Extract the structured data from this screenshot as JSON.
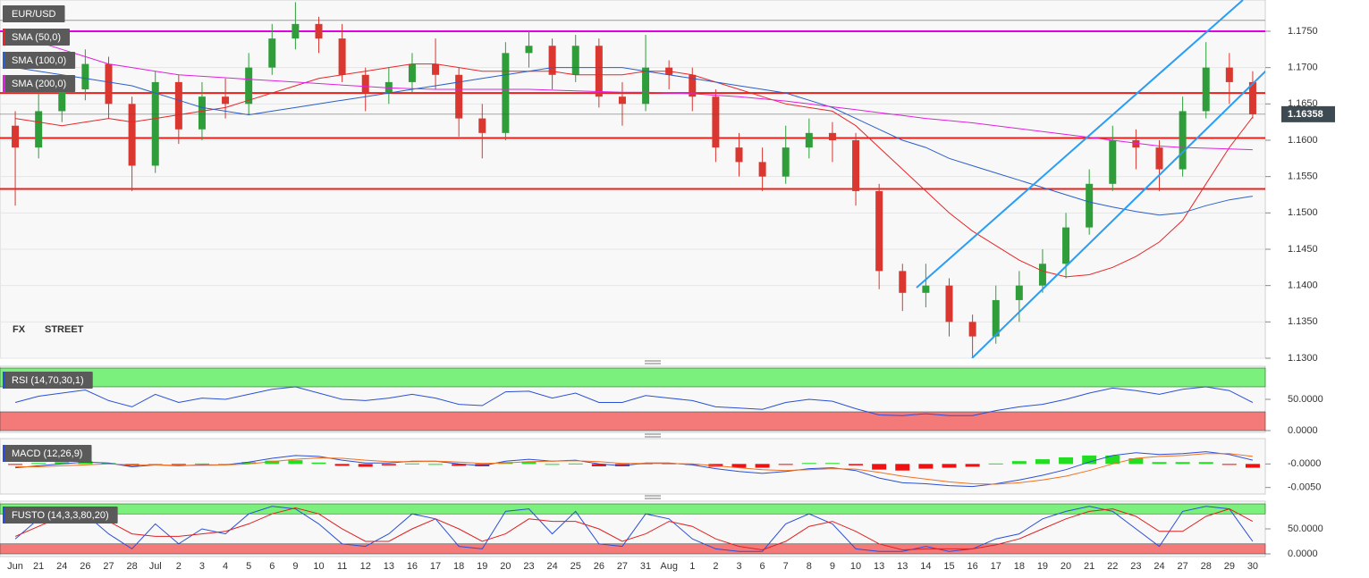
{
  "chart_data": [
    {
      "type": "candlestick",
      "title": "EUR/USD",
      "categories": [
        "Jun",
        "21",
        "24",
        "26",
        "27",
        "28",
        "Jul",
        "2",
        "3",
        "4",
        "5",
        "6",
        "9",
        "10",
        "11",
        "12",
        "13",
        "16",
        "17",
        "18",
        "19",
        "20",
        "23",
        "24",
        "25",
        "26",
        "27",
        "31",
        "Aug",
        "1",
        "2",
        "3",
        "6",
        "7",
        "8",
        "9",
        "10",
        "13",
        "13",
        "14",
        "15",
        "16",
        "17",
        "18",
        "19",
        "20",
        "21",
        "22",
        "23",
        "24",
        "27",
        "28",
        "29",
        "30"
      ],
      "series": [
        {
          "name": "EUR/USD",
          "open": [
            1.162,
            1.159,
            1.164,
            1.167,
            1.1705,
            1.165,
            1.1565,
            1.168,
            1.1615,
            1.166,
            1.165,
            1.17,
            1.174,
            1.176,
            1.174,
            1.169,
            1.1665,
            1.168,
            1.1705,
            1.169,
            1.163,
            1.161,
            1.172,
            1.173,
            1.169,
            1.173,
            1.166,
            1.165,
            1.17,
            1.169,
            1.166,
            1.159,
            1.157,
            1.155,
            1.159,
            1.161,
            1.16,
            1.153,
            1.142,
            1.139,
            1.14,
            1.135,
            1.133,
            1.138,
            1.14,
            1.143,
            1.148,
            1.154,
            1.16,
            1.159,
            1.156,
            1.164,
            1.17,
            1.168
          ],
          "high": [
            1.164,
            1.1665,
            1.169,
            1.1725,
            1.1715,
            1.166,
            1.1695,
            1.169,
            1.168,
            1.1685,
            1.172,
            1.176,
            1.179,
            1.177,
            1.176,
            1.17,
            1.17,
            1.172,
            1.174,
            1.17,
            1.165,
            1.1735,
            1.175,
            1.174,
            1.1745,
            1.174,
            1.168,
            1.1745,
            1.171,
            1.17,
            1.167,
            1.161,
            1.159,
            1.162,
            1.163,
            1.1625,
            1.161,
            1.154,
            1.143,
            1.143,
            1.141,
            1.136,
            1.14,
            1.142,
            1.145,
            1.15,
            1.156,
            1.162,
            1.1615,
            1.16,
            1.166,
            1.1735,
            1.172,
            1.1695
          ],
          "low": [
            1.151,
            1.1575,
            1.1625,
            1.1655,
            1.163,
            1.153,
            1.1555,
            1.1595,
            1.16,
            1.163,
            1.1635,
            1.169,
            1.1725,
            1.172,
            1.168,
            1.164,
            1.165,
            1.1665,
            1.167,
            1.1605,
            1.1575,
            1.16,
            1.17,
            1.167,
            1.168,
            1.1645,
            1.162,
            1.164,
            1.167,
            1.164,
            1.157,
            1.155,
            1.153,
            1.154,
            1.1575,
            1.157,
            1.151,
            1.1395,
            1.1365,
            1.137,
            1.133,
            1.13,
            1.132,
            1.135,
            1.139,
            1.141,
            1.147,
            1.153,
            1.156,
            1.153,
            1.155,
            1.163,
            1.165,
            1.163
          ],
          "close": [
            1.159,
            1.164,
            1.167,
            1.1705,
            1.165,
            1.1565,
            1.168,
            1.1615,
            1.166,
            1.165,
            1.17,
            1.174,
            1.176,
            1.174,
            1.169,
            1.1665,
            1.168,
            1.1705,
            1.169,
            1.163,
            1.161,
            1.172,
            1.173,
            1.169,
            1.173,
            1.166,
            1.165,
            1.17,
            1.169,
            1.166,
            1.159,
            1.157,
            1.155,
            1.159,
            1.161,
            1.16,
            1.153,
            1.142,
            1.139,
            1.14,
            1.135,
            1.133,
            1.138,
            1.14,
            1.143,
            1.148,
            1.154,
            1.16,
            1.159,
            1.156,
            1.164,
            1.17,
            1.168,
            1.1636
          ]
        }
      ],
      "colors": {
        "up": "#2f9e3a",
        "down": "#d9372f"
      },
      "overlays": [
        {
          "name": "SMA (50,0)",
          "color": "#e8262a",
          "values": [
            1.163,
            1.1625,
            1.162,
            1.1625,
            1.163,
            1.1625,
            1.163,
            1.1635,
            1.164,
            1.1645,
            1.1655,
            1.1665,
            1.1675,
            1.1685,
            1.169,
            1.1695,
            1.17,
            1.1705,
            1.1705,
            1.17,
            1.1695,
            1.1695,
            1.1695,
            1.1695,
            1.169,
            1.169,
            1.169,
            1.1695,
            1.1695,
            1.169,
            1.168,
            1.167,
            1.166,
            1.165,
            1.1645,
            1.164,
            1.162,
            1.159,
            1.156,
            1.153,
            1.15,
            1.1475,
            1.1455,
            1.1435,
            1.142,
            1.1412,
            1.1415,
            1.1425,
            1.144,
            1.146,
            1.149,
            1.154,
            1.159,
            1.1632
          ]
        },
        {
          "name": "SMA (100,0)",
          "color": "#2b5fc9",
          "values": [
            1.17,
            1.1695,
            1.169,
            1.1685,
            1.168,
            1.1675,
            1.1665,
            1.1655,
            1.1645,
            1.164,
            1.1635,
            1.164,
            1.1645,
            1.165,
            1.1655,
            1.166,
            1.1665,
            1.167,
            1.1675,
            1.168,
            1.1685,
            1.169,
            1.1695,
            1.17,
            1.17,
            1.17,
            1.17,
            1.1695,
            1.169,
            1.1685,
            1.168,
            1.1675,
            1.167,
            1.1665,
            1.1655,
            1.1645,
            1.163,
            1.1615,
            1.16,
            1.159,
            1.1575,
            1.1565,
            1.1555,
            1.1545,
            1.1535,
            1.1525,
            1.1515,
            1.1508,
            1.1502,
            1.1497,
            1.15,
            1.151,
            1.1518,
            1.1523
          ]
        },
        {
          "name": "SMA (200,0)",
          "color": "#e020e0",
          "values": [
            1.1745,
            1.1735,
            1.1725,
            1.1715,
            1.1705,
            1.17,
            1.1695,
            1.169,
            1.1688,
            1.1686,
            1.1684,
            1.1682,
            1.168,
            1.1678,
            1.1676,
            1.1674,
            1.1672,
            1.1671,
            1.167,
            1.167,
            1.167,
            1.167,
            1.167,
            1.1669,
            1.1668,
            1.1667,
            1.1666,
            1.1666,
            1.1665,
            1.1664,
            1.1662,
            1.166,
            1.1657,
            1.1654,
            1.165,
            1.1646,
            1.1642,
            1.1638,
            1.1634,
            1.163,
            1.1627,
            1.1624,
            1.162,
            1.1616,
            1.1612,
            1.1608,
            1.1604,
            1.16,
            1.1596,
            1.1592,
            1.159,
            1.1589,
            1.1588,
            1.1587
          ]
        }
      ],
      "levels": [
        {
          "value": 1.1765,
          "color": "#9a9a9a"
        },
        {
          "value": 1.175,
          "color": "#e000e0"
        },
        {
          "value": 1.1665,
          "color": "#e8201b"
        },
        {
          "value": 1.1603,
          "color": "#e8201b"
        },
        {
          "value": 1.1533,
          "color": "#e8201b"
        }
      ],
      "last_price": 1.16358,
      "watermark": [
        "FX",
        "STREET"
      ],
      "ylim": [
        1.13,
        1.1793
      ],
      "yticks": [
        {
          "value": 1.13,
          "label": "1.1300"
        },
        {
          "value": 1.135,
          "label": "1.1350"
        },
        {
          "value": 1.14,
          "label": "1.1400"
        },
        {
          "value": 1.145,
          "label": "1.1450"
        },
        {
          "value": 1.15,
          "label": "1.1500"
        },
        {
          "value": 1.155,
          "label": "1.1550"
        },
        {
          "value": 1.16,
          "label": "1.1600"
        },
        {
          "value": 1.165,
          "label": "1.1650"
        },
        {
          "value": 1.17,
          "label": "1.1700"
        },
        {
          "value": 1.175,
          "label": "1.1750"
        }
      ],
      "grid": true
    },
    {
      "type": "line",
      "title": "RSI (14,70,30,1)",
      "series": [
        {
          "color": "#2b4fd6",
          "values": [
            45,
            55,
            60,
            65,
            48,
            38,
            58,
            45,
            52,
            50,
            58,
            66,
            70,
            60,
            50,
            48,
            52,
            58,
            52,
            42,
            40,
            62,
            63,
            52,
            60,
            45,
            45,
            56,
            52,
            48,
            38,
            36,
            34,
            45,
            50,
            47,
            35,
            25,
            24,
            27,
            24,
            24,
            32,
            38,
            42,
            50,
            60,
            68,
            64,
            58,
            66,
            70,
            64,
            45
          ]
        }
      ],
      "zones": [
        {
          "from": 70,
          "to": 100,
          "color": "#7cf07c"
        },
        {
          "from": 0,
          "to": 30,
          "color": "#f47a7a"
        }
      ],
      "ylim": [
        0,
        100
      ],
      "yticks": [
        {
          "value": 0,
          "label": "0.0000"
        },
        {
          "value": 50,
          "label": "50.0000"
        }
      ]
    },
    {
      "type": "macd",
      "title": "MACD (12,26,9)",
      "series": [
        {
          "color": "#2b4fd6",
          "values": [
            -0.0008,
            -0.0004,
            0.0,
            0.0004,
            0.0002,
            -0.0006,
            -0.0002,
            -0.0004,
            -0.0002,
            -0.0002,
            0.0004,
            0.0012,
            0.0018,
            0.0016,
            0.0008,
            0.0002,
            0.0002,
            0.0006,
            0.0006,
            0.0,
            -0.0004,
            0.0006,
            0.001,
            0.0006,
            0.0008,
            0.0,
            -0.0004,
            0.0002,
            0.0002,
            -0.0002,
            -0.001,
            -0.0016,
            -0.002,
            -0.0016,
            -0.001,
            -0.0008,
            -0.0014,
            -0.003,
            -0.004,
            -0.0042,
            -0.0046,
            -0.0048,
            -0.0042,
            -0.0034,
            -0.0024,
            -0.0012,
            0.0004,
            0.0018,
            0.0024,
            0.002,
            0.0022,
            0.0026,
            0.002,
            0.0008
          ]
        },
        {
          "color": "#f07020",
          "values": [
            -0.0006,
            -0.0006,
            -0.0004,
            -0.0002,
            0.0,
            -0.0002,
            -0.0002,
            -0.0003,
            -0.0003,
            -0.0002,
            0.0,
            0.0005,
            0.001,
            0.0013,
            0.0012,
            0.0008,
            0.0005,
            0.0005,
            0.0006,
            0.0004,
            0.0001,
            0.0002,
            0.0005,
            0.0006,
            0.0007,
            0.0005,
            0.0001,
            0.0001,
            0.0001,
            0.0,
            -0.0004,
            -0.0008,
            -0.0012,
            -0.0014,
            -0.0012,
            -0.001,
            -0.0011,
            -0.0018,
            -0.0026,
            -0.0032,
            -0.0038,
            -0.0042,
            -0.0043,
            -0.004,
            -0.0034,
            -0.0026,
            -0.0014,
            0.0,
            0.0012,
            0.0016,
            0.0018,
            0.0022,
            0.0022,
            0.0016
          ]
        }
      ],
      "histogram": {
        "colors": {
          "up": "#22dd22",
          "down": "#ee1111"
        },
        "values": [
          -0.0002,
          0.0002,
          0.0004,
          0.0006,
          0.0002,
          -0.0004,
          0.0,
          -0.0001,
          0.0001,
          0.0,
          0.0004,
          0.0007,
          0.0008,
          0.0003,
          -0.0004,
          -0.0006,
          -0.0003,
          0.0001,
          0.0,
          -0.0004,
          -0.0005,
          0.0004,
          0.0005,
          0.0,
          0.0001,
          -0.0005,
          -0.0005,
          0.0001,
          0.0001,
          -0.0002,
          -0.0006,
          -0.0008,
          -0.0008,
          -0.0002,
          0.0002,
          0.0002,
          -0.0003,
          -0.0012,
          -0.0014,
          -0.001,
          -0.0008,
          -0.0006,
          0.0001,
          0.0006,
          0.001,
          0.0014,
          0.0018,
          0.0018,
          0.0012,
          0.0004,
          0.0004,
          0.0004,
          -0.0002,
          -0.0008
        ]
      },
      "ylim": [
        -0.0062,
        0.005
      ],
      "yticks": [
        {
          "value": 0,
          "label": "-0.0000"
        },
        {
          "value": -0.005,
          "label": "-0.0050"
        }
      ]
    },
    {
      "type": "line",
      "title": "FUSTO (14,3,3,80,20)",
      "series": [
        {
          "color": "#2b4fd6",
          "values": [
            30,
            70,
            85,
            80,
            40,
            10,
            60,
            20,
            50,
            40,
            80,
            95,
            90,
            60,
            20,
            15,
            40,
            80,
            70,
            15,
            10,
            85,
            90,
            40,
            85,
            20,
            15,
            80,
            70,
            30,
            10,
            5,
            5,
            60,
            80,
            60,
            10,
            5,
            5,
            15,
            5,
            10,
            30,
            40,
            70,
            85,
            95,
            85,
            50,
            15,
            85,
            95,
            90,
            25
          ]
        },
        {
          "color": "#e02020",
          "values": [
            35,
            55,
            75,
            82,
            65,
            40,
            35,
            35,
            40,
            45,
            60,
            80,
            92,
            80,
            50,
            25,
            25,
            50,
            70,
            50,
            25,
            40,
            70,
            65,
            65,
            50,
            25,
            40,
            65,
            55,
            30,
            15,
            8,
            25,
            55,
            65,
            45,
            20,
            8,
            10,
            10,
            10,
            18,
            30,
            50,
            70,
            85,
            90,
            75,
            45,
            45,
            75,
            90,
            65
          ]
        }
      ],
      "zones": [
        {
          "from": 80,
          "to": 100,
          "color": "#7cf07c"
        },
        {
          "from": 0,
          "to": 20,
          "color": "#f47a7a"
        }
      ],
      "ylim": [
        0,
        100
      ],
      "yticks": [
        {
          "value": 0,
          "label": "0.0000"
        },
        {
          "value": 50,
          "label": "50.0000"
        }
      ]
    }
  ]
}
